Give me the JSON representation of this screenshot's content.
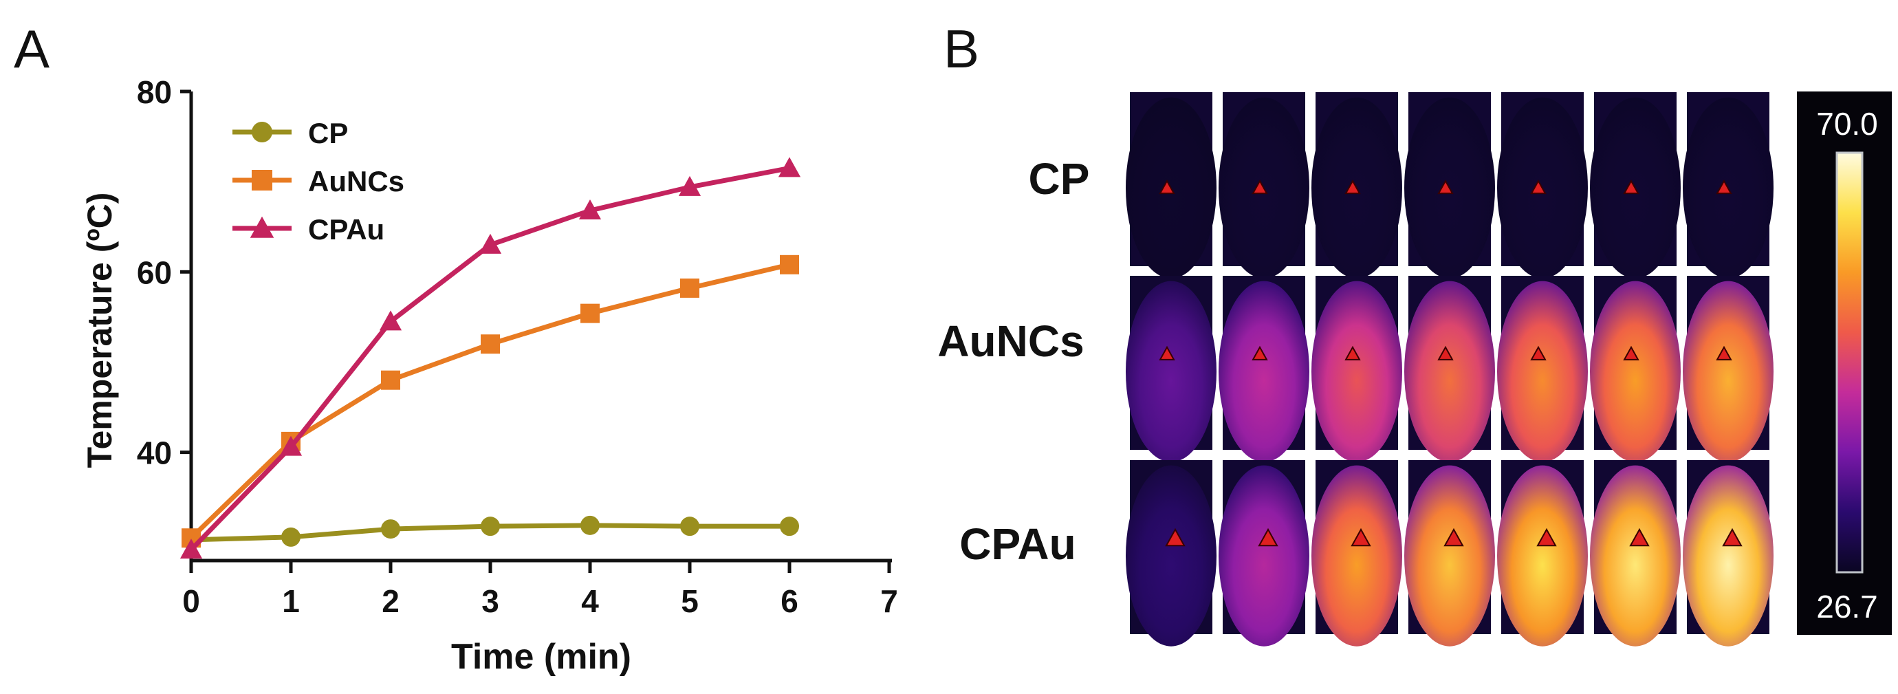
{
  "panels": {
    "a_label": "A",
    "b_label": "B"
  },
  "chart_data": {
    "type": "line",
    "title": "",
    "xlabel": "Time (min)",
    "ylabel": "Temperature (ºC)",
    "xlim": [
      0,
      7
    ],
    "ylim": [
      28,
      80
    ],
    "x_ticks": [
      "0",
      "1",
      "2",
      "3",
      "4",
      "5",
      "6",
      "7"
    ],
    "y_ticks": [
      "40",
      "60",
      "80"
    ],
    "legend_position": "top-left",
    "grid": false,
    "x": [
      0,
      1,
      2,
      3,
      4,
      5,
      6
    ],
    "series": [
      {
        "name": "CP",
        "color": "#9a8f1e",
        "marker": "circle",
        "values": [
          30.3,
          30.6,
          31.5,
          31.8,
          31.9,
          31.8,
          31.8
        ]
      },
      {
        "name": "AuNCs",
        "color": "#e87b22",
        "marker": "square",
        "values": [
          30.5,
          41.2,
          48.0,
          52.0,
          55.4,
          58.2,
          60.8
        ]
      },
      {
        "name": "CPAu",
        "color": "#c4235e",
        "marker": "triangle",
        "values": [
          29.2,
          40.6,
          54.5,
          63.0,
          66.8,
          69.4,
          71.5
        ]
      }
    ]
  },
  "thermal_panel": {
    "row_labels": [
      "CP",
      "AuNCs",
      "CPAu"
    ],
    "colorbar_max": "70.0",
    "colorbar_min": "26.7",
    "columns": 7,
    "intensity_levels": [
      [
        0.02,
        0.03,
        0.03,
        0.03,
        0.03,
        0.03,
        0.03
      ],
      [
        0.25,
        0.42,
        0.55,
        0.62,
        0.68,
        0.72,
        0.76
      ],
      [
        0.15,
        0.4,
        0.72,
        0.8,
        0.86,
        0.9,
        0.95
      ]
    ],
    "colormap": [
      "#0a0622",
      "#2a0a6e",
      "#7a18a8",
      "#c42c9a",
      "#ef5a4a",
      "#f99a26",
      "#fde04a",
      "#fffbe0"
    ]
  }
}
